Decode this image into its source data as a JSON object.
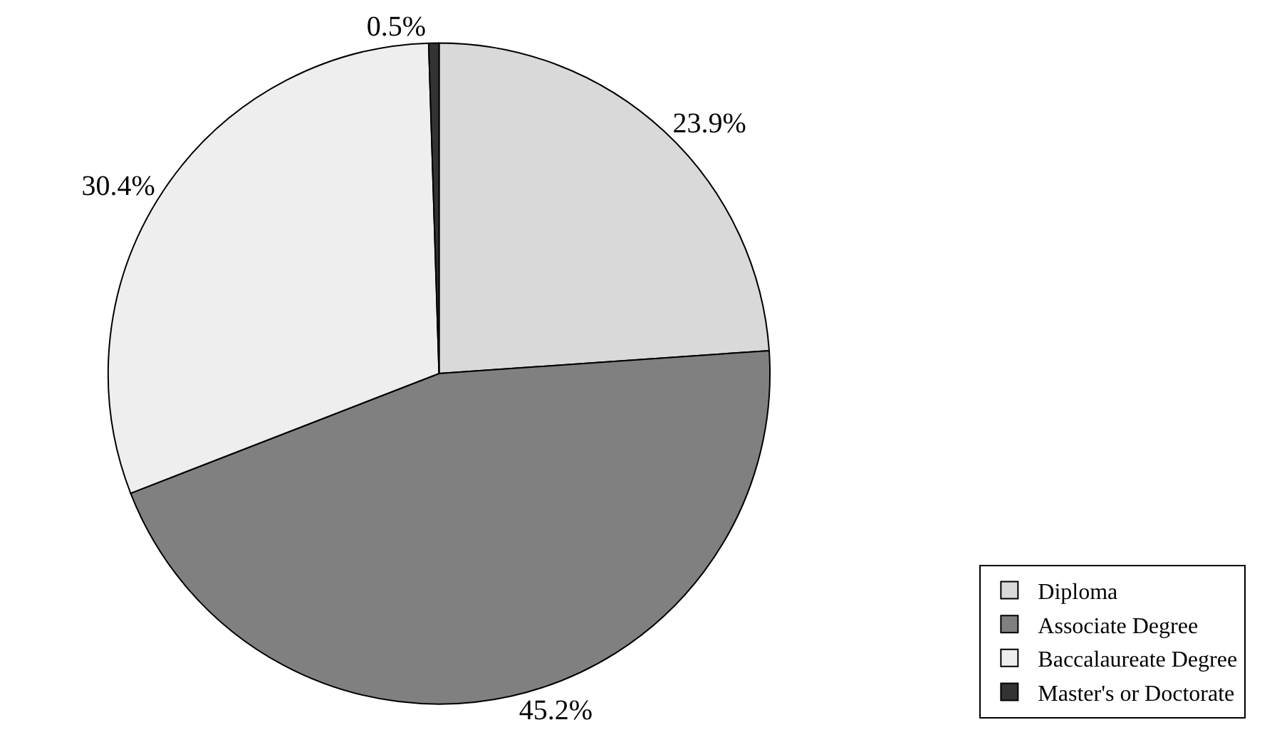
{
  "chart_data": {
    "type": "pie",
    "categories": [
      "Diploma",
      "Associate Degree",
      "Baccalaureate Degree",
      "Master's or Doctorate"
    ],
    "values": [
      23.9,
      45.2,
      30.4,
      0.5
    ],
    "value_labels": [
      "23.9%",
      "45.2%",
      "30.4%",
      "0.5%"
    ],
    "colors": [
      "#d9d9d9",
      "#808080",
      "#eeeeee",
      "#333333"
    ],
    "legend": "bottom right"
  }
}
